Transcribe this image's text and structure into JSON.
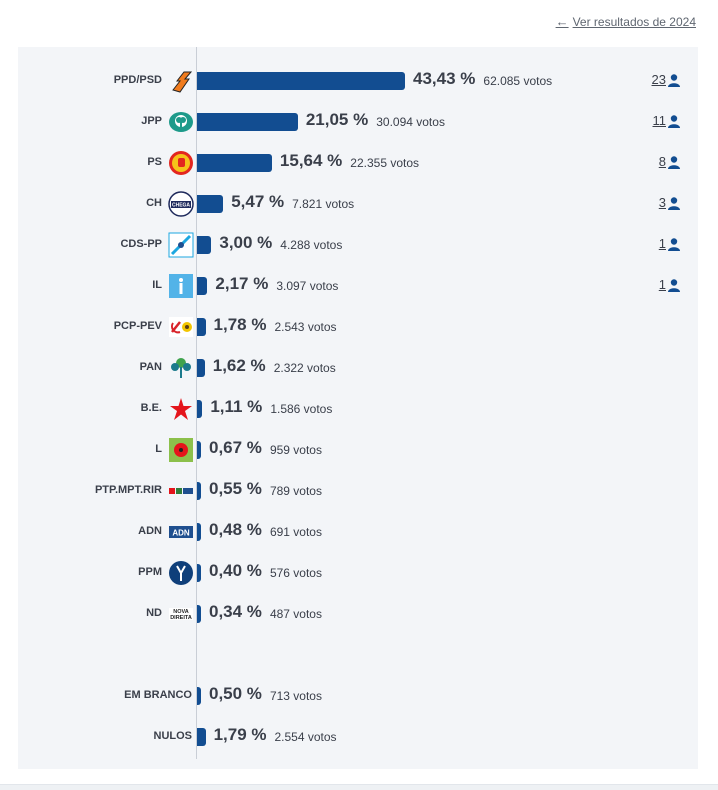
{
  "header": {
    "link_label": "Ver resultados de 2024"
  },
  "chart_data": {
    "type": "bar",
    "orientation": "horizontal",
    "unit": "%",
    "rows": [
      {
        "party": "PPD/PSD",
        "pct": 43.43,
        "pct_label": "43,43 %",
        "votes_label": "62.085 votos",
        "seats": "23",
        "logo": "psd-arrow-icon",
        "color": "#f07b1d"
      },
      {
        "party": "JPP",
        "pct": 21.05,
        "pct_label": "21,05 %",
        "votes_label": "30.094 votos",
        "seats": "11",
        "logo": "jpp-tree-icon",
        "color": "#1d9a8a"
      },
      {
        "party": "PS",
        "pct": 15.64,
        "pct_label": "15,64 %",
        "votes_label": "22.355 votos",
        "seats": "8",
        "logo": "ps-fist-icon",
        "color": "#e3261f"
      },
      {
        "party": "CH",
        "pct": 5.47,
        "pct_label": "5,47 %",
        "votes_label": "7.821 votos",
        "seats": "3",
        "logo": "chega-logo-icon",
        "color": "#1f2a5c"
      },
      {
        "party": "CDS-PP",
        "pct": 3.0,
        "pct_label": "3,00 %",
        "votes_label": "4.288 votos",
        "seats": "1",
        "logo": "cds-arrows-icon",
        "color": "#1ca7e0"
      },
      {
        "party": "IL",
        "pct": 2.17,
        "pct_label": "2,17 %",
        "votes_label": "3.097 votos",
        "seats": "1",
        "logo": "il-info-icon",
        "color": "#52b3e8"
      },
      {
        "party": "PCP-PEV",
        "pct": 1.78,
        "pct_label": "1,78 %",
        "votes_label": "2.543 votos",
        "seats": "",
        "logo": "pcp-sickle-icon",
        "color": "#d8232a"
      },
      {
        "party": "PAN",
        "pct": 1.62,
        "pct_label": "1,62 %",
        "votes_label": "2.322 votos",
        "seats": "",
        "logo": "pan-tree-icon",
        "color": "#1b7a8c"
      },
      {
        "party": "B.E.",
        "pct": 1.11,
        "pct_label": "1,11 %",
        "votes_label": "1.586 votos",
        "seats": "",
        "logo": "be-star-icon",
        "color": "#e4141b"
      },
      {
        "party": "L",
        "pct": 0.67,
        "pct_label": "0,67 %",
        "votes_label": "959 votos",
        "seats": "",
        "logo": "livre-flower-icon",
        "color": "#8cc04b"
      },
      {
        "party": "PTP.MPT.RIR",
        "pct": 0.55,
        "pct_label": "0,55 %",
        "votes_label": "789 votos",
        "seats": "",
        "logo": "coalition-logos-icon",
        "color": "#2f7d3a"
      },
      {
        "party": "ADN",
        "pct": 0.48,
        "pct_label": "0,48 %",
        "votes_label": "691 votos",
        "seats": "",
        "logo": "adn-logo-icon",
        "color": "#1f4f8f"
      },
      {
        "party": "PPM",
        "pct": 0.4,
        "pct_label": "0,40 %",
        "votes_label": "576 votos",
        "seats": "",
        "logo": "ppm-logo-icon",
        "color": "#0f3f7a"
      },
      {
        "party": "ND",
        "pct": 0.34,
        "pct_label": "0,34 %",
        "votes_label": "487 votos",
        "seats": "",
        "logo": "nd-logo-icon",
        "color": "#222222"
      },
      {
        "party": "EM BRANCO",
        "pct": 0.5,
        "pct_label": "0,50 %",
        "votes_label": "713 votos",
        "seats": "",
        "logo": "",
        "color": ""
      },
      {
        "party": "NULOS",
        "pct": 1.79,
        "pct_label": "1,79 %",
        "votes_label": "2.554 votos",
        "seats": "",
        "logo": "",
        "color": ""
      }
    ]
  }
}
